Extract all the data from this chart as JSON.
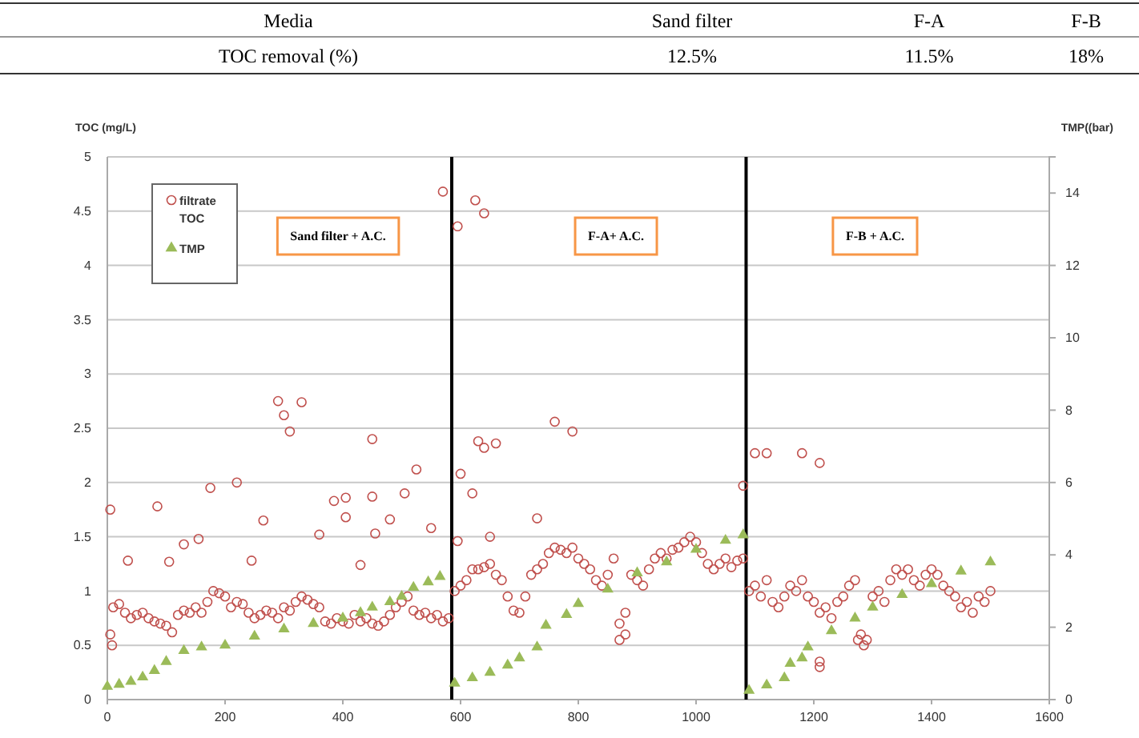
{
  "chart_data": {
    "type": "scatter",
    "ylabel": "TOC (mg/L)",
    "y2label": "TMP((bar)",
    "annotations": [
      "Media",
      "Sand  filter",
      "F-A",
      "F-B",
      "TOC  removal  (%)",
      "12.5%",
      "11.5%",
      "18%",
      "Sand filter + A.C.",
      "F-A+ A.C.",
      "F-B + A.C."
    ],
    "xlim": [
      0,
      1600
    ],
    "xticks": [
      0,
      200,
      400,
      600,
      800,
      1000,
      1200,
      1400,
      1600
    ],
    "ylim": [
      0,
      5
    ],
    "yticks": [
      0,
      0.5,
      1,
      1.5,
      2,
      2.5,
      3,
      3.5,
      4,
      4.5,
      5
    ],
    "y2lim": [
      0,
      15
    ],
    "y2ticks": [
      0,
      2,
      4,
      6,
      8,
      10,
      12,
      14
    ],
    "grid": "y",
    "legend": "top left",
    "ref_lines": [
      {
        "axis": "x",
        "value": 585,
        "color": "#000000"
      },
      {
        "axis": "x",
        "value": 1085,
        "color": "#000000"
      }
    ],
    "series": [
      {
        "name": "filtrate TOC",
        "color": "#c0504d",
        "marker": "circle",
        "x": [
          10,
          20,
          30,
          40,
          50,
          60,
          70,
          80,
          90,
          100,
          110,
          120,
          130,
          140,
          150,
          160,
          170,
          180,
          190,
          200,
          210,
          220,
          230,
          240,
          250,
          260,
          270,
          280,
          290,
          300,
          310,
          320,
          330,
          340,
          350,
          360,
          370,
          380,
          390,
          400,
          410,
          420,
          430,
          440,
          450,
          460,
          470,
          480,
          490,
          500,
          510,
          520,
          530,
          540,
          550,
          560,
          570,
          580,
          5,
          5,
          8,
          35,
          85,
          105,
          130,
          155,
          175,
          220,
          245,
          265,
          290,
          300,
          310,
          330,
          360,
          385,
          405,
          405,
          430,
          450,
          450,
          455,
          480,
          505,
          525,
          550,
          570,
          590,
          600,
          610,
          620,
          630,
          640,
          650,
          660,
          670,
          680,
          690,
          700,
          710,
          720,
          730,
          740,
          750,
          760,
          770,
          780,
          790,
          800,
          810,
          820,
          830,
          840,
          850,
          860,
          870,
          880,
          890,
          900,
          910,
          920,
          930,
          940,
          950,
          960,
          970,
          980,
          990,
          1000,
          1010,
          1020,
          1030,
          1040,
          1050,
          1060,
          1070,
          1080,
          595,
          625,
          640,
          630,
          640,
          660,
          600,
          620,
          595,
          650,
          730,
          760,
          790,
          870,
          880,
          1080,
          1090,
          1100,
          1110,
          1120,
          1130,
          1140,
          1150,
          1160,
          1170,
          1180,
          1190,
          1200,
          1210,
          1220,
          1230,
          1240,
          1250,
          1260,
          1270,
          1280,
          1290,
          1300,
          1310,
          1320,
          1330,
          1340,
          1350,
          1360,
          1370,
          1380,
          1390,
          1400,
          1410,
          1420,
          1430,
          1440,
          1450,
          1460,
          1470,
          1480,
          1490,
          1500,
          1100,
          1120,
          1180,
          1210,
          1210,
          1210,
          1275,
          1285
        ],
        "values": [
          0.85,
          0.88,
          0.8,
          0.75,
          0.78,
          0.8,
          0.75,
          0.72,
          0.7,
          0.68,
          0.62,
          0.78,
          0.82,
          0.8,
          0.85,
          0.8,
          0.9,
          1.0,
          0.98,
          0.95,
          0.85,
          0.9,
          0.88,
          0.8,
          0.75,
          0.78,
          0.82,
          0.8,
          0.75,
          0.85,
          0.82,
          0.9,
          0.95,
          0.92,
          0.88,
          0.85,
          0.72,
          0.7,
          0.75,
          0.72,
          0.7,
          0.78,
          0.72,
          0.75,
          0.7,
          0.68,
          0.72,
          0.78,
          0.85,
          0.9,
          0.95,
          0.82,
          0.78,
          0.8,
          0.75,
          0.78,
          0.72,
          0.75,
          1.75,
          0.6,
          0.5,
          1.28,
          1.78,
          1.27,
          1.43,
          1.48,
          1.95,
          2.0,
          1.28,
          1.65,
          2.75,
          2.62,
          2.47,
          2.74,
          1.52,
          1.83,
          1.68,
          1.86,
          1.24,
          2.4,
          1.87,
          1.53,
          1.66,
          1.9,
          2.12,
          1.58,
          4.68,
          1.0,
          1.05,
          1.1,
          1.2,
          1.2,
          1.22,
          1.25,
          1.15,
          1.1,
          0.95,
          0.82,
          0.8,
          0.95,
          1.15,
          1.2,
          1.25,
          1.35,
          1.4,
          1.38,
          1.35,
          1.4,
          1.3,
          1.25,
          1.2,
          1.1,
          1.05,
          1.15,
          1.3,
          0.7,
          0.8,
          1.15,
          1.1,
          1.05,
          1.2,
          1.3,
          1.35,
          1.3,
          1.38,
          1.4,
          1.45,
          1.5,
          1.45,
          1.35,
          1.25,
          1.2,
          1.25,
          1.3,
          1.22,
          1.28,
          1.3,
          4.36,
          4.6,
          4.48,
          2.38,
          2.32,
          2.36,
          2.08,
          1.9,
          1.46,
          1.5,
          1.67,
          2.56,
          2.47,
          0.55,
          0.6,
          1.97,
          1.0,
          1.05,
          0.95,
          1.1,
          0.9,
          0.85,
          0.95,
          1.05,
          1.0,
          1.1,
          0.95,
          0.9,
          0.8,
          0.85,
          0.75,
          0.9,
          0.95,
          1.05,
          1.1,
          0.6,
          0.55,
          0.95,
          1.0,
          0.9,
          1.1,
          1.2,
          1.15,
          1.2,
          1.1,
          1.05,
          1.15,
          1.2,
          1.15,
          1.05,
          1.0,
          0.95,
          0.85,
          0.9,
          0.8,
          0.95,
          0.9,
          1.0,
          2.27,
          2.27,
          2.27,
          2.18,
          0.35,
          0.3,
          0.55,
          0.5
        ]
      },
      {
        "name": "TMP",
        "color": "#9bbb59",
        "marker": "triangle",
        "axis": "y2",
        "x": [
          0,
          20,
          40,
          60,
          80,
          100,
          130,
          160,
          200,
          250,
          300,
          350,
          400,
          430,
          450,
          480,
          500,
          520,
          545,
          565,
          590,
          620,
          650,
          680,
          700,
          730,
          745,
          780,
          800,
          850,
          900,
          950,
          1000,
          1050,
          1080,
          1090,
          1120,
          1150,
          1160,
          1180,
          1190,
          1230,
          1270,
          1300,
          1350,
          1400,
          1450,
          1500
        ],
        "values": [
          0.36,
          0.42,
          0.5,
          0.62,
          0.8,
          1.05,
          1.35,
          1.45,
          1.5,
          1.75,
          1.95,
          2.1,
          2.25,
          2.4,
          2.55,
          2.7,
          2.85,
          3.1,
          3.25,
          3.4,
          0.45,
          0.6,
          0.75,
          0.95,
          1.15,
          1.45,
          2.05,
          2.35,
          2.65,
          3.05,
          3.5,
          3.8,
          4.15,
          4.4,
          4.55,
          0.25,
          0.4,
          0.6,
          1.0,
          1.15,
          1.45,
          1.9,
          2.25,
          2.55,
          2.9,
          3.2,
          3.55,
          3.8
        ]
      }
    ]
  }
}
